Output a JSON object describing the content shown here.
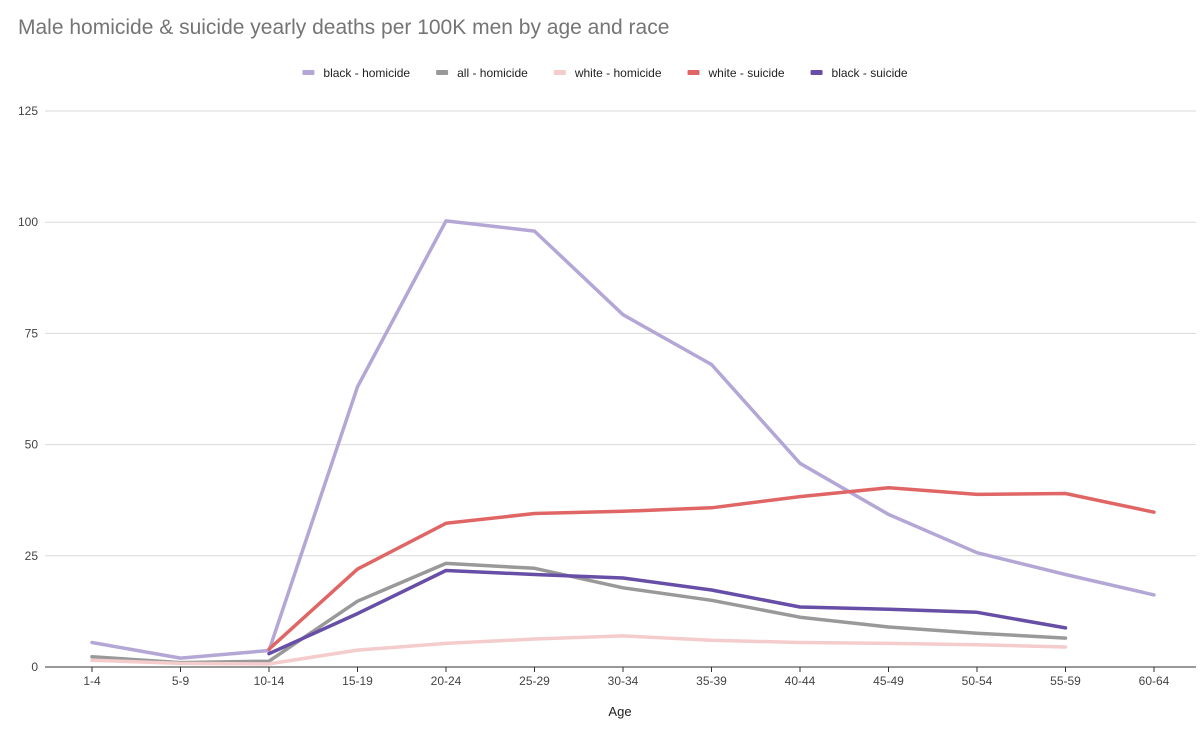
{
  "chart_data": {
    "type": "line",
    "title": "Male homicide & suicide yearly deaths per 100K men by age and race",
    "xlabel": "Age",
    "ylabel": "",
    "ylim": [
      0,
      125
    ],
    "yticks": [
      0,
      25,
      50,
      75,
      100,
      125
    ],
    "grid": true,
    "legend_position": "top",
    "categories": [
      "1-4",
      "5-9",
      "10-14",
      "15-19",
      "20-24",
      "25-29",
      "30-34",
      "35-39",
      "40-44",
      "45-49",
      "50-54",
      "55-59",
      "60-64"
    ],
    "series": [
      {
        "name": "black - homicide",
        "color": "#b4a7d6",
        "values": [
          5.5,
          2.0,
          3.7,
          63.0,
          100.3,
          98.0,
          79.2,
          68.0,
          45.8,
          34.3,
          25.7,
          20.8,
          16.2
        ]
      },
      {
        "name": "all - homicide",
        "color": "#999999",
        "values": [
          2.3,
          1.0,
          1.3,
          14.8,
          23.3,
          22.2,
          17.8,
          15.0,
          11.2,
          9.0,
          7.6,
          6.5,
          null
        ]
      },
      {
        "name": "white - homicide",
        "color": "#f4cccc",
        "values": [
          1.5,
          0.8,
          0.7,
          3.8,
          5.3,
          6.3,
          7.0,
          6.0,
          5.5,
          5.3,
          5.0,
          4.5,
          null
        ]
      },
      {
        "name": "white - suicide",
        "color": "#e06666",
        "values": [
          null,
          null,
          4.0,
          22.0,
          32.3,
          34.5,
          35.0,
          35.8,
          38.3,
          40.3,
          38.8,
          39.0,
          34.8
        ]
      },
      {
        "name": "black - suicide",
        "color": "#674ea7",
        "values": [
          null,
          null,
          3.0,
          12.0,
          21.7,
          20.8,
          20.0,
          17.3,
          13.5,
          13.0,
          12.3,
          8.8,
          null
        ]
      }
    ]
  }
}
